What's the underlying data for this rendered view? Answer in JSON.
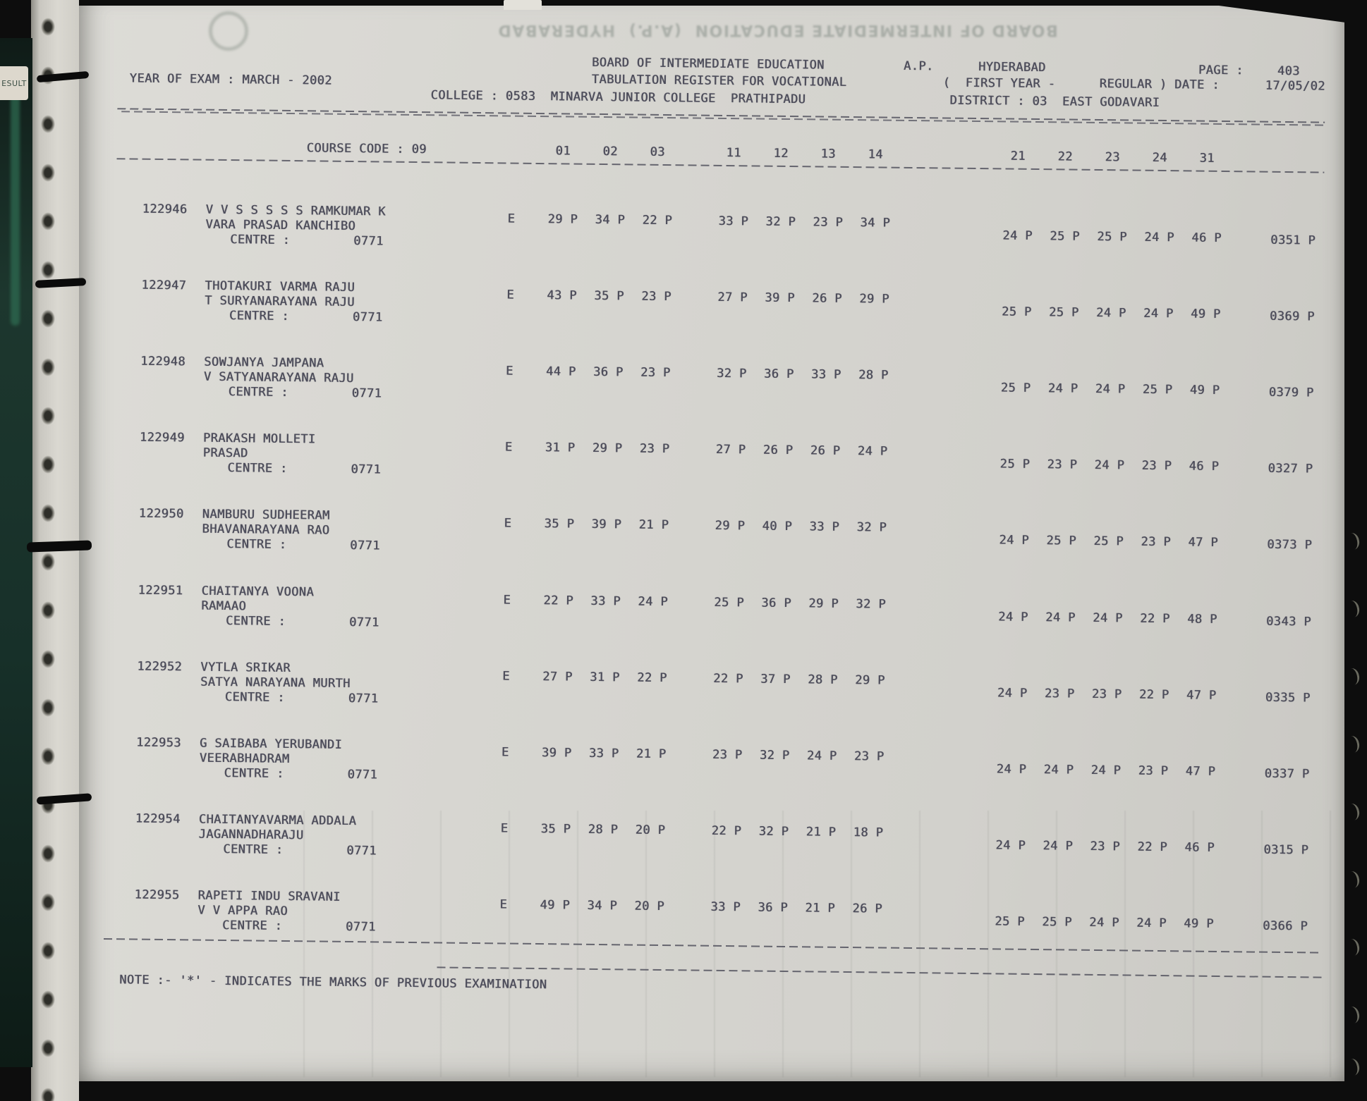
{
  "header": {
    "board": "BOARD OF INTERMEDIATE EDUCATION",
    "ap": "A.P.",
    "city": "HYDERABAD",
    "page_label": "PAGE :",
    "page_value": "403",
    "exam_year": "YEAR OF EXAM : MARCH - 2002",
    "register_line": "TABULATION REGISTER FOR VOCATIONAL",
    "first_year": "(  FIRST YEAR -",
    "regular_date": "REGULAR ) DATE :",
    "date_value": "17/05/02",
    "college": "COLLEGE : 0583  MINARVA JUNIOR COLLEGE  PRATHIPADU",
    "district": "DISTRICT : 03  EAST GODAVARI"
  },
  "table": {
    "course_code": "COURSE CODE : 09",
    "centre_label": "CENTRE :",
    "column_groups": [
      [
        "01",
        "02",
        "03"
      ],
      [
        "11",
        "12",
        "13",
        "14"
      ],
      [
        "21",
        "22",
        "23",
        "24",
        "31"
      ]
    ],
    "rows": [
      {
        "reg": "122946",
        "name1": "V V S S S S S RAMKUMAR K",
        "name2": "VARA PRASAD KANCHIBO",
        "centre": "0771",
        "medium": "E",
        "g1": [
          "29 P",
          "34 P",
          "22 P"
        ],
        "g2": [
          "33 P",
          "32 P",
          "23 P",
          "34 P"
        ],
        "g3": [
          "24 P",
          "25 P",
          "25 P",
          "24 P",
          "46 P"
        ],
        "total": "0351 P"
      },
      {
        "reg": "122947",
        "name1": "THOTAKURI VARMA RAJU",
        "name2": "T SURYANARAYANA RAJU",
        "centre": "0771",
        "medium": "E",
        "g1": [
          "43 P",
          "35 P",
          "23 P"
        ],
        "g2": [
          "27 P",
          "39 P",
          "26 P",
          "29 P"
        ],
        "g3": [
          "25 P",
          "25 P",
          "24 P",
          "24 P",
          "49 P"
        ],
        "total": "0369 P"
      },
      {
        "reg": "122948",
        "name1": "SOWJANYA JAMPANA",
        "name2": "V SATYANARAYANA RAJU",
        "centre": "0771",
        "medium": "E",
        "g1": [
          "44 P",
          "36 P",
          "23 P"
        ],
        "g2": [
          "32 P",
          "36 P",
          "33 P",
          "28 P"
        ],
        "g3": [
          "25 P",
          "24 P",
          "24 P",
          "25 P",
          "49 P"
        ],
        "total": "0379 P"
      },
      {
        "reg": "122949",
        "name1": "PRAKASH MOLLETI",
        "name2": "PRASAD",
        "centre": "0771",
        "medium": "E",
        "g1": [
          "31 P",
          "29 P",
          "23 P"
        ],
        "g2": [
          "27 P",
          "26 P",
          "26 P",
          "24 P"
        ],
        "g3": [
          "25 P",
          "23 P",
          "24 P",
          "23 P",
          "46 P"
        ],
        "total": "0327 P"
      },
      {
        "reg": "122950",
        "name1": "NAMBURU SUDHEERAM",
        "name2": "BHAVANARAYANA RAO",
        "centre": "0771",
        "medium": "E",
        "g1": [
          "35 P",
          "39 P",
          "21 P"
        ],
        "g2": [
          "29 P",
          "40 P",
          "33 P",
          "32 P"
        ],
        "g3": [
          "24 P",
          "25 P",
          "25 P",
          "23 P",
          "47 P"
        ],
        "total": "0373 P"
      },
      {
        "reg": "122951",
        "name1": "CHAITANYA VOONA",
        "name2": "RAMAAO",
        "centre": "0771",
        "medium": "E",
        "g1": [
          "22 P",
          "33 P",
          "24 P"
        ],
        "g2": [
          "25 P",
          "36 P",
          "29 P",
          "32 P"
        ],
        "g3": [
          "24 P",
          "24 P",
          "24 P",
          "22 P",
          "48 P"
        ],
        "total": "0343 P"
      },
      {
        "reg": "122952",
        "name1": "VYTLA SRIKAR",
        "name2": "SATYA NARAYANA MURTH",
        "centre": "0771",
        "medium": "E",
        "g1": [
          "27 P",
          "31 P",
          "22 P"
        ],
        "g2": [
          "22 P",
          "37 P",
          "28 P",
          "29 P"
        ],
        "g3": [
          "24 P",
          "23 P",
          "23 P",
          "22 P",
          "47 P"
        ],
        "total": "0335 P"
      },
      {
        "reg": "122953",
        "name1": "G SAIBABA YERUBANDI",
        "name2": "VEERABHADRAM",
        "centre": "0771",
        "medium": "E",
        "g1": [
          "39 P",
          "33 P",
          "21 P"
        ],
        "g2": [
          "23 P",
          "32 P",
          "24 P",
          "23 P"
        ],
        "g3": [
          "24 P",
          "24 P",
          "24 P",
          "23 P",
          "47 P"
        ],
        "total": "0337 P"
      },
      {
        "reg": "122954",
        "name1": "CHAITANYAVARMA ADDALA",
        "name2": "JAGANNADHARAJU",
        "centre": "0771",
        "medium": "E",
        "g1": [
          "35 P",
          "28 P",
          "20 P"
        ],
        "g2": [
          "22 P",
          "32 P",
          "21 P",
          "18 P"
        ],
        "g3": [
          "24 P",
          "24 P",
          "23 P",
          "22 P",
          "46 P"
        ],
        "total": "0315 P"
      },
      {
        "reg": "122955",
        "name1": "RAPETI INDU SRAVANI",
        "name2": "V V APPA RAO",
        "centre": "0771",
        "medium": "E",
        "g1": [
          "49 P",
          "34 P",
          "20 P"
        ],
        "g2": [
          "33 P",
          "36 P",
          "21 P",
          "26 P"
        ],
        "g3": [
          "25 P",
          "25 P",
          "24 P",
          "24 P",
          "49 P"
        ],
        "total": "0366 P"
      }
    ]
  },
  "note": "NOTE :- '*' - INDICATES THE MARKS OF PREVIOUS EXAMINATION",
  "binder": {
    "result_tab": "ESULT"
  },
  "ghost": {
    "board": "BOARD OF INTERMEDIATE EDUCATION  (A.P.)  HYDERABAD"
  },
  "colors": {
    "paper": "#d7d6d1",
    "ink": "#4c4c5a",
    "cover_green": "#1d372e",
    "backdrop": "#0d0d0d"
  }
}
